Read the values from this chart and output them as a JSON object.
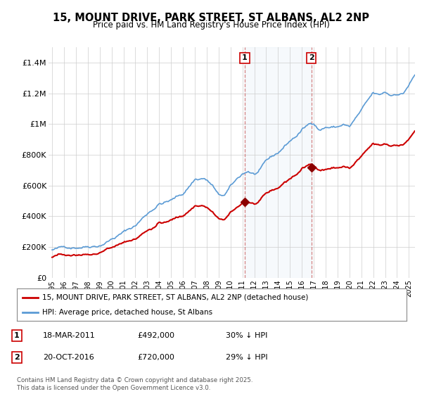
{
  "title": "15, MOUNT DRIVE, PARK STREET, ST ALBANS, AL2 2NP",
  "subtitle": "Price paid vs. HM Land Registry's House Price Index (HPI)",
  "ylim": [
    0,
    1500000
  ],
  "xlim": [
    1994.7,
    2025.5
  ],
  "hpi_color": "#5b9bd5",
  "hpi_fill_color": "#dce9f5",
  "price_color": "#cc0000",
  "highlight_color": "#dce9f5",
  "marker1_date": 2011.2,
  "marker1_price": 492000,
  "marker2_date": 2016.8,
  "marker2_price": 720000,
  "legend_label1": "15, MOUNT DRIVE, PARK STREET, ST ALBANS, AL2 2NP (detached house)",
  "legend_label2": "HPI: Average price, detached house, St Albans",
  "note1_date": "18-MAR-2011",
  "note1_price": "£492,000",
  "note1_pct": "30% ↓ HPI",
  "note2_date": "20-OCT-2016",
  "note2_price": "£720,000",
  "note2_pct": "29% ↓ HPI",
  "footer": "Contains HM Land Registry data © Crown copyright and database right 2025.\nThis data is licensed under the Open Government Licence v3.0.",
  "background_color": "#ffffff",
  "plot_bg_color": "#ffffff",
  "grid_color": "#cccccc"
}
